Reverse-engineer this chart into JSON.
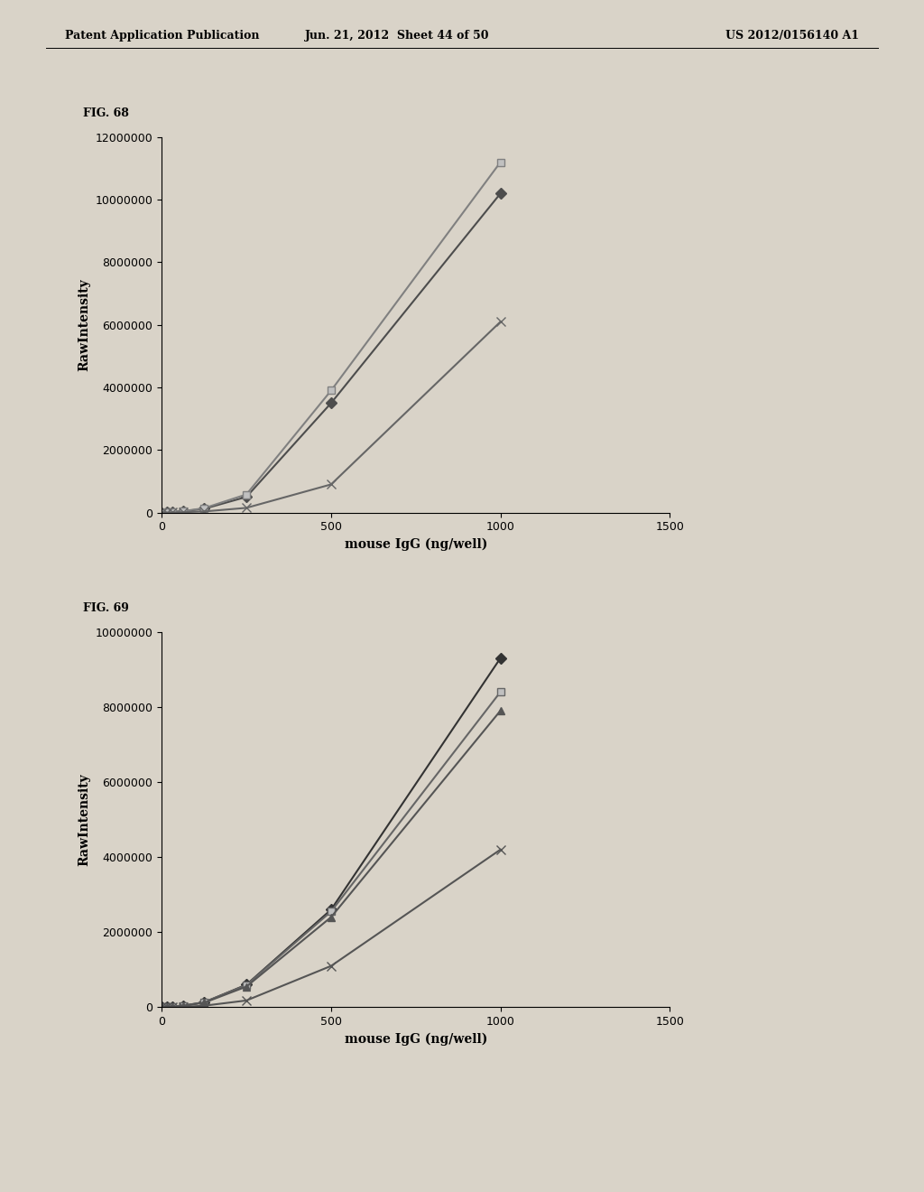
{
  "fig68_title": "FIG. 68",
  "fig69_title": "FIG. 69",
  "header_left": "Patent Application Publication",
  "header_mid": "Jun. 21, 2012  Sheet 44 of 50",
  "header_right": "US 2012/0156140 A1",
  "xlabel": "mouse IgG (ng/well)",
  "ylabel": "RawIntensity",
  "bg_color": "#d9d3c8",
  "plot_bg": "#d9d3c8",
  "text_color": "#000000",
  "fig68": {
    "xlim": [
      0,
      1500
    ],
    "ylim": [
      0,
      12000000
    ],
    "yticks": [
      0,
      2000000,
      4000000,
      6000000,
      8000000,
      10000000,
      12000000
    ],
    "xticks": [
      0,
      500,
      1000,
      1500
    ],
    "series": [
      {
        "x": [
          0,
          15,
          31,
          63,
          125,
          250,
          500,
          1000
        ],
        "y": [
          0,
          5000,
          15000,
          40000,
          120000,
          500000,
          3500000,
          10200000
        ],
        "marker": "D",
        "color": "#4d4d4d",
        "markersize": 6,
        "linewidth": 1.5,
        "markerfacecolor": "#4d4d4d"
      },
      {
        "x": [
          0,
          15,
          31,
          63,
          125,
          250,
          500,
          1000
        ],
        "y": [
          0,
          6000,
          18000,
          45000,
          140000,
          580000,
          3900000,
          11200000
        ],
        "marker": "s",
        "color": "#808080",
        "markersize": 6,
        "linewidth": 1.5,
        "markerfacecolor": "#c0c0c0"
      },
      {
        "x": [
          0,
          15,
          31,
          63,
          125,
          250,
          500,
          1000
        ],
        "y": [
          0,
          2000,
          5000,
          12000,
          35000,
          150000,
          900000,
          6100000
        ],
        "marker": "x",
        "color": "#666666",
        "markersize": 7,
        "linewidth": 1.5,
        "markerfacecolor": "#666666"
      }
    ]
  },
  "fig69": {
    "xlim": [
      0,
      1500
    ],
    "ylim": [
      0,
      10000000
    ],
    "yticks": [
      0,
      2000000,
      4000000,
      6000000,
      8000000,
      10000000
    ],
    "xticks": [
      0,
      500,
      1000,
      1500
    ],
    "series": [
      {
        "x": [
          0,
          15,
          31,
          63,
          125,
          250,
          500,
          1000
        ],
        "y": [
          0,
          5000,
          15000,
          40000,
          130000,
          600000,
          2600000,
          9300000
        ],
        "marker": "D",
        "color": "#333333",
        "markersize": 6,
        "linewidth": 1.5,
        "markerfacecolor": "#333333"
      },
      {
        "x": [
          0,
          15,
          31,
          63,
          125,
          250,
          500,
          1000
        ],
        "y": [
          0,
          5500,
          16000,
          42000,
          135000,
          590000,
          2550000,
          8400000
        ],
        "marker": "s",
        "color": "#666666",
        "markersize": 6,
        "linewidth": 1.5,
        "markerfacecolor": "#c0c0c0"
      },
      {
        "x": [
          0,
          15,
          31,
          63,
          125,
          250,
          500,
          1000
        ],
        "y": [
          0,
          4800,
          14000,
          38000,
          120000,
          550000,
          2400000,
          7900000
        ],
        "marker": "^",
        "color": "#555555",
        "markersize": 6,
        "linewidth": 1.5,
        "markerfacecolor": "#555555"
      },
      {
        "x": [
          0,
          15,
          31,
          63,
          125,
          250,
          500,
          1000
        ],
        "y": [
          0,
          2000,
          5000,
          12000,
          40000,
          180000,
          1100000,
          4200000
        ],
        "marker": "x",
        "color": "#555555",
        "markersize": 7,
        "linewidth": 1.5,
        "markerfacecolor": "#555555"
      }
    ]
  },
  "title_fontsize": 9,
  "axis_label_fontsize": 10,
  "tick_fontsize": 9,
  "header_fontsize": 9,
  "ylabel_fontsize": 10
}
